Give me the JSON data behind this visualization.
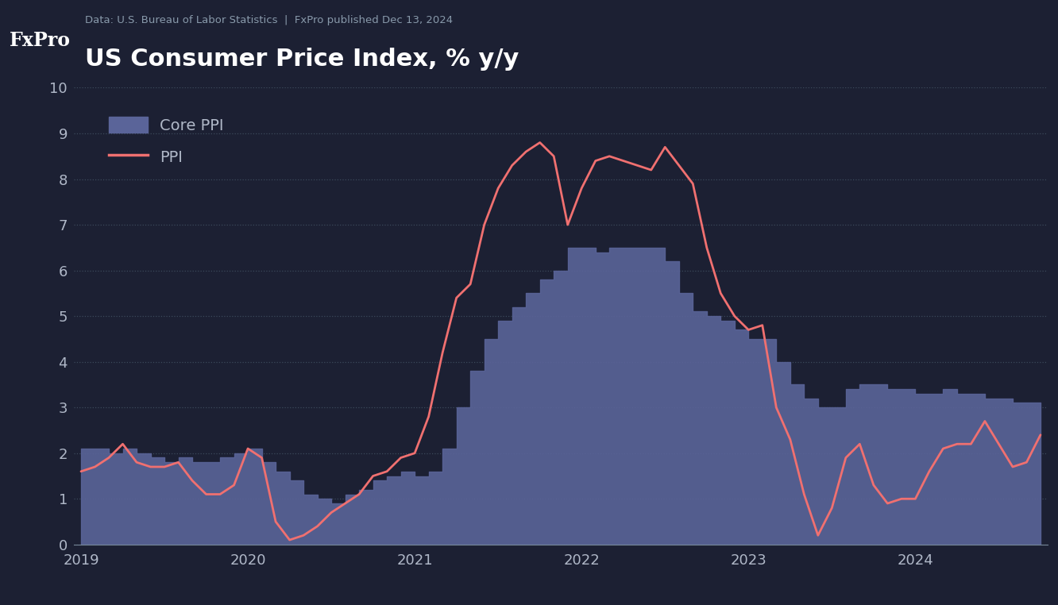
{
  "title": "US Consumer Price Index, % y/y",
  "subtitle": "Data: U.S. Bureau of Labor Statistics  |  FxPro published Dec 13, 2024",
  "background_color": "#1c2033",
  "plot_bg_color": "#1c2033",
  "area_color": "#5a6499",
  "line_color": "#f07070",
  "text_color": "#b0b8c8",
  "title_color": "#ffffff",
  "fxpro_bg": "#dd1111",
  "ylim": [
    0,
    10
  ],
  "core_ppi_values": [
    2.1,
    2.1,
    2.0,
    2.1,
    2.0,
    1.9,
    1.8,
    1.9,
    1.8,
    1.8,
    1.9,
    2.0,
    2.1,
    1.8,
    1.6,
    1.4,
    1.1,
    1.0,
    0.9,
    1.1,
    1.2,
    1.4,
    1.5,
    1.6,
    1.5,
    1.6,
    2.1,
    3.0,
    3.8,
    4.5,
    4.9,
    5.2,
    5.5,
    5.8,
    6.0,
    6.5,
    6.5,
    6.4,
    6.5,
    6.5,
    6.5,
    6.5,
    6.2,
    5.5,
    5.1,
    5.0,
    4.9,
    4.7,
    4.5,
    4.5,
    4.0,
    3.5,
    3.2,
    3.0,
    3.0,
    3.4,
    3.5,
    3.5,
    3.4,
    3.4,
    3.3,
    3.3,
    3.4,
    3.3,
    3.3,
    3.2,
    3.2,
    3.1,
    3.1,
    3.1
  ],
  "ppi_values": [
    1.6,
    1.7,
    1.9,
    2.2,
    1.8,
    1.7,
    1.7,
    1.8,
    1.4,
    1.1,
    1.1,
    1.3,
    2.1,
    1.9,
    0.5,
    0.1,
    0.2,
    0.4,
    0.7,
    0.9,
    1.1,
    1.5,
    1.6,
    1.9,
    2.0,
    2.8,
    4.2,
    5.4,
    5.7,
    7.0,
    7.8,
    8.3,
    8.6,
    8.8,
    8.5,
    7.0,
    7.8,
    8.4,
    8.5,
    8.4,
    8.3,
    8.2,
    8.7,
    8.3,
    7.9,
    6.5,
    5.5,
    5.0,
    4.7,
    4.8,
    3.0,
    2.3,
    1.1,
    0.2,
    0.8,
    1.9,
    2.2,
    1.3,
    0.9,
    1.0,
    1.0,
    1.6,
    2.1,
    2.2,
    2.2,
    2.7,
    2.2,
    1.7,
    1.8,
    2.4
  ],
  "xtick_labels": [
    "2019",
    "2020",
    "2021",
    "2022",
    "2023",
    "2024"
  ],
  "xtick_positions": [
    0,
    12,
    24,
    36,
    48,
    60
  ]
}
